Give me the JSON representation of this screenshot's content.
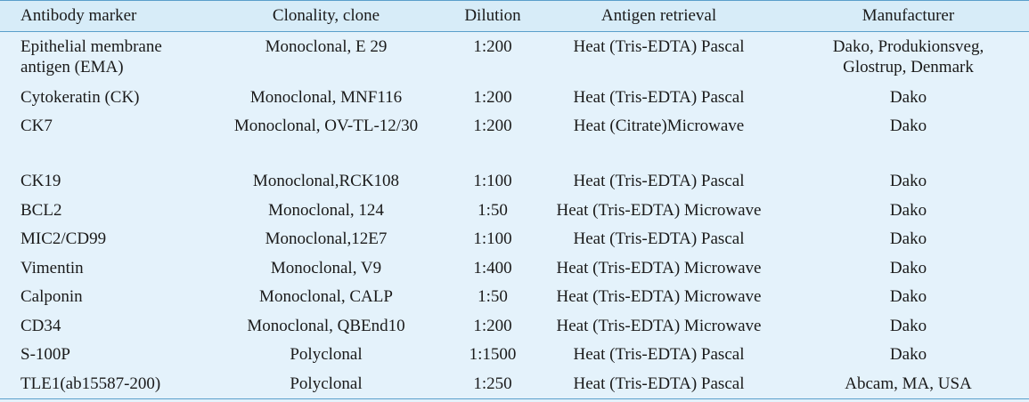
{
  "table": {
    "headers": {
      "marker": "Antibody marker",
      "clone": "Clonality, clone",
      "dilution": "Dilution",
      "retrieval": "Antigen retrieval",
      "manufacturer": "Manufacturer"
    },
    "rows": [
      {
        "marker_line1": "Epithelial membrane",
        "marker_line2": "antigen (EMA)",
        "clone": "Monoclonal, E 29",
        "dilution": "1:200",
        "retrieval": "Heat (Tris-EDTA) Pascal",
        "manufacturer_line1": "Dako, Produkionsveg,",
        "manufacturer_line2": "Glostrup, Denmark"
      },
      {
        "marker": "Cytokeratin (CK)",
        "clone": "Monoclonal, MNF116",
        "dilution": "1:200",
        "retrieval": "Heat (Tris-EDTA) Pascal",
        "manufacturer": "Dako"
      },
      {
        "marker": "CK7",
        "clone": "Monoclonal, OV-TL-12/30",
        "dilution": "1:200",
        "retrieval": "Heat (Citrate)Microwave",
        "manufacturer": "Dako"
      },
      {
        "marker": "CK19",
        "clone": "Monoclonal,RCK108",
        "dilution": "1:100",
        "retrieval": "Heat (Tris-EDTA) Pascal",
        "manufacturer": "Dako"
      },
      {
        "marker": "BCL2",
        "clone": "Monoclonal, 124",
        "dilution": "1:50",
        "retrieval": "Heat (Tris-EDTA) Microwave",
        "manufacturer": "Dako"
      },
      {
        "marker": "MIC2/CD99",
        "clone": "Monoclonal,12E7",
        "dilution": "1:100",
        "retrieval": "Heat (Tris-EDTA) Pascal",
        "manufacturer": "Dako"
      },
      {
        "marker": "Vimentin",
        "clone": "Monoclonal, V9",
        "dilution": "1:400",
        "retrieval": "Heat (Tris-EDTA) Microwave",
        "manufacturer": "Dako"
      },
      {
        "marker": "Calponin",
        "clone": "Monoclonal, CALP",
        "dilution": "1:50",
        "retrieval": "Heat (Tris-EDTA) Microwave",
        "manufacturer": "Dako"
      },
      {
        "marker": "CD34",
        "clone": "Monoclonal, QBEnd10",
        "dilution": "1:200",
        "retrieval": "Heat (Tris-EDTA) Microwave",
        "manufacturer": "Dako"
      },
      {
        "marker": "S-100P",
        "clone": "Polyclonal",
        "dilution": "1:1500",
        "retrieval": "Heat (Tris-EDTA) Pascal",
        "manufacturer": "Dako"
      },
      {
        "marker": "TLE1(ab15587-200)",
        "clone": "Polyclonal",
        "dilution": "1:250",
        "retrieval": "Heat (Tris-EDTA) Pascal",
        "manufacturer": "Abcam, MA, USA"
      }
    ]
  },
  "colors": {
    "background": "#e4f2fb",
    "header_background": "#d7ecf8",
    "rule": "#5a9fcb"
  }
}
